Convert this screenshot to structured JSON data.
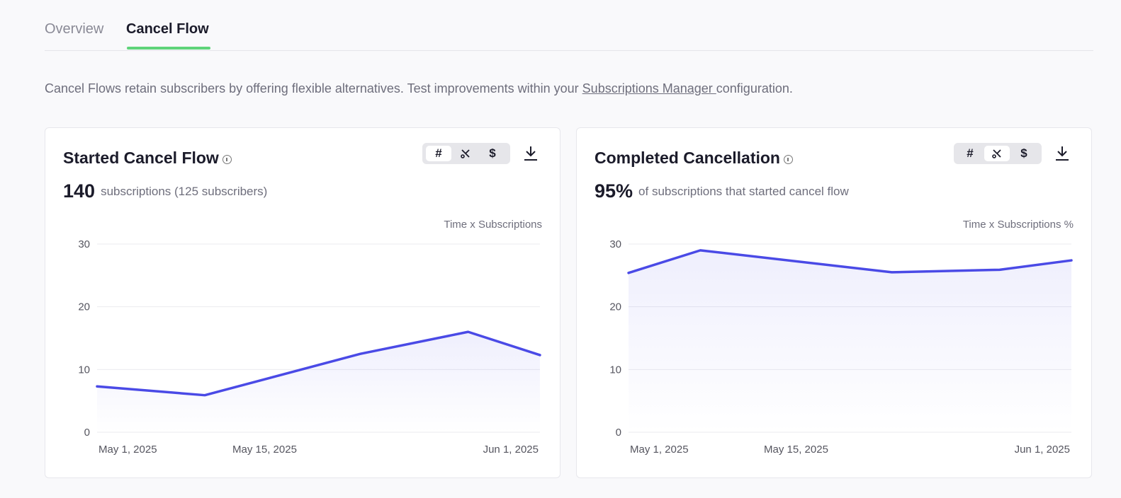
{
  "tabs": [
    {
      "label": "Overview",
      "active": false
    },
    {
      "label": "Cancel Flow",
      "active": true
    }
  ],
  "description": {
    "before": "Cancel Flows retain subscribers by offering flexible alternatives. Test improvements within your ",
    "link": "Subscriptions Manager ",
    "after": "configuration."
  },
  "colors": {
    "accent": "#4a4ae6",
    "tab_underline": "#5fd47a"
  },
  "cards": [
    {
      "title": "Started Cancel Flow",
      "info_icon": "info-icon",
      "metric_value": "140",
      "metric_label": "subscriptions (125 subscribers)",
      "toggle": [
        {
          "glyph": "#",
          "name": "count-toggle",
          "active": true
        },
        {
          "glyph": "✂",
          "name": "percent-toggle",
          "active": false
        },
        {
          "glyph": "$",
          "name": "revenue-toggle",
          "active": false
        }
      ],
      "download_icon": "download-icon",
      "axis_caption": "Time x Subscriptions"
    },
    {
      "title": "Completed Cancellation",
      "info_icon": "info-icon",
      "metric_value": "95%",
      "metric_label": "of subscriptions that started cancel flow",
      "toggle": [
        {
          "glyph": "#",
          "name": "count-toggle",
          "active": false
        },
        {
          "glyph": "✂",
          "name": "percent-toggle",
          "active": true
        },
        {
          "glyph": "$",
          "name": "revenue-toggle",
          "active": false
        }
      ],
      "download_icon": "download-icon",
      "axis_caption": "Time x Subscriptions %"
    }
  ],
  "chart_data": [
    {
      "type": "area",
      "x": [
        "2025-05-01",
        "2025-05-10",
        "2025-05-23",
        "2025-06-01",
        "2025-06-07"
      ],
      "values": [
        7.3,
        5.9,
        12.5,
        16,
        12.3
      ],
      "yticks": [
        0,
        10,
        20,
        30
      ],
      "xticks": [
        "May 1, 2025",
        "May 15, 2025",
        "Jun 1, 2025"
      ],
      "xtick_dates": [
        "2025-05-01",
        "2025-05-15",
        "2025-06-01"
      ],
      "ylim": [
        0,
        30
      ],
      "xlim": [
        "2025-05-01",
        "2025-06-07"
      ],
      "grid": true
    },
    {
      "type": "area",
      "x": [
        "2025-05-01",
        "2025-05-07",
        "2025-05-23",
        "2025-06-01",
        "2025-06-07"
      ],
      "values": [
        25.4,
        29,
        25.5,
        25.9,
        27.4
      ],
      "yticks": [
        0,
        10,
        20,
        30
      ],
      "xticks": [
        "May 1, 2025",
        "May 15, 2025",
        "Jun 1, 2025"
      ],
      "xtick_dates": [
        "2025-05-01",
        "2025-05-15",
        "2025-06-01"
      ],
      "ylim": [
        0,
        30
      ],
      "xlim": [
        "2025-05-01",
        "2025-06-07"
      ],
      "grid": true
    }
  ]
}
